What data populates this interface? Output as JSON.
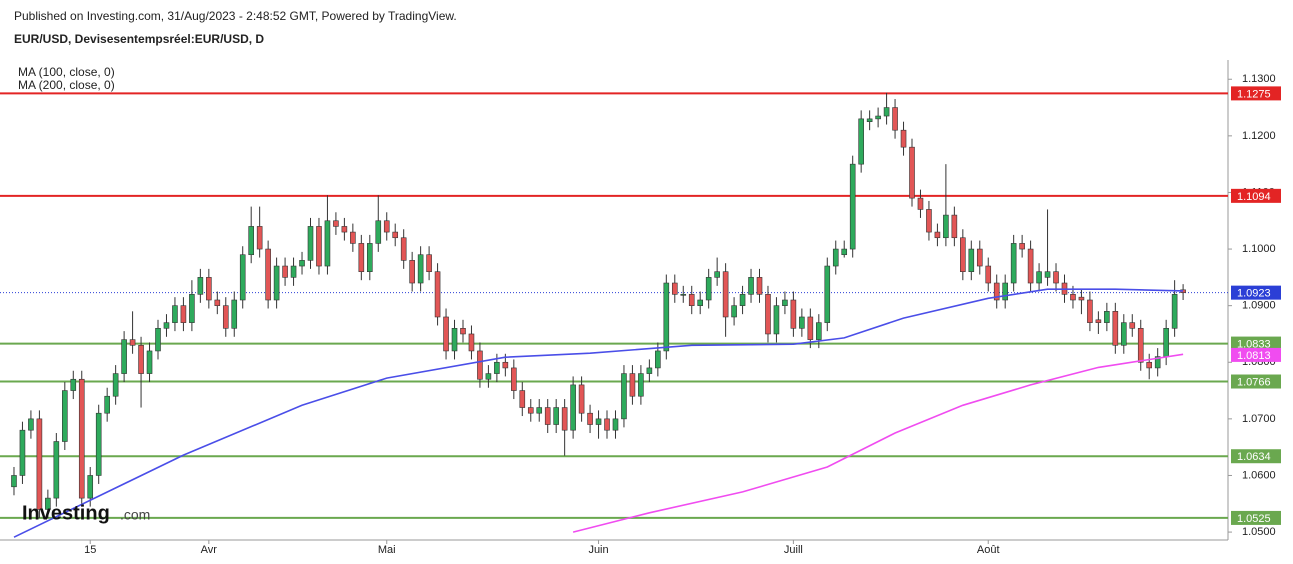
{
  "header": {
    "published": "Published on Investing.com, 31/Aug/2023 - 2:48:52 GMT, Powered by TradingView.",
    "symbol": "EUR/USD, Devisesentempsréel:EUR/USD, D"
  },
  "logo": {
    "name": "Investing",
    "suffix": ".com"
  },
  "chart_data": {
    "type": "candlestick",
    "up_color": "#2eaa5c",
    "down_color": "#e25656",
    "xlim": [
      -1.65,
      143.3
    ],
    "ylim": [
      1.0486,
      1.1334
    ],
    "xticks": [
      {
        "value": 9,
        "label": "15"
      },
      {
        "value": 23,
        "label": "Avr"
      },
      {
        "value": 44,
        "label": "Mai"
      },
      {
        "value": 69,
        "label": "Juin"
      },
      {
        "value": 92,
        "label": "Juill"
      },
      {
        "value": 115,
        "label": "Août"
      }
    ],
    "yticks": [
      {
        "value": 1.13,
        "label": "1.1300"
      },
      {
        "value": 1.12,
        "label": "1.1200"
      },
      {
        "value": 1.11,
        "label": "1.1100"
      },
      {
        "value": 1.1,
        "label": "1.1000"
      },
      {
        "value": 1.09,
        "label": "1.0900"
      },
      {
        "value": 1.08,
        "label": "1.0800"
      },
      {
        "value": 1.07,
        "label": "1.0700"
      },
      {
        "value": 1.06,
        "label": "1.0600"
      },
      {
        "value": 1.05,
        "label": "1.0500"
      }
    ],
    "open": [
      1.058,
      1.06,
      1.068,
      1.07,
      1.054,
      1.056,
      1.066,
      1.075,
      1.077,
      1.056,
      1.06,
      1.071,
      1.074,
      1.078,
      1.084,
      1.083,
      1.078,
      1.082,
      1.086,
      1.087,
      1.09,
      1.087,
      1.092,
      1.095,
      1.091,
      1.09,
      1.086,
      1.091,
      1.099,
      1.104,
      1.1,
      1.091,
      1.097,
      1.095,
      1.097,
      1.098,
      1.104,
      1.097,
      1.105,
      1.104,
      1.103,
      1.101,
      1.096,
      1.101,
      1.105,
      1.103,
      1.102,
      1.098,
      1.094,
      1.099,
      1.096,
      1.088,
      1.082,
      1.086,
      1.085,
      1.082,
      1.077,
      1.078,
      1.08,
      1.079,
      1.075,
      1.072,
      1.071,
      1.072,
      1.069,
      1.072,
      1.068,
      1.076,
      1.071,
      1.069,
      1.07,
      1.068,
      1.07,
      1.078,
      1.074,
      1.078,
      1.079,
      1.082,
      1.094,
      1.092,
      1.092,
      1.09,
      1.091,
      1.095,
      1.096,
      1.088,
      1.09,
      1.092,
      1.095,
      1.092,
      1.085,
      1.09,
      1.091,
      1.086,
      1.088,
      1.084,
      1.087,
      1.097,
      1.099,
      1.1,
      1.115,
      1.1225,
      1.123,
      1.1235,
      1.125,
      1.121,
      1.118,
      1.109,
      1.107,
      1.103,
      1.102,
      1.106,
      1.102,
      1.096,
      1.1,
      1.097,
      1.094,
      1.091,
      1.094,
      1.101,
      1.1,
      1.094,
      1.095,
      1.096,
      1.094,
      1.092,
      1.0915,
      1.091,
      1.0875,
      1.087,
      1.089,
      1.083,
      1.087,
      1.086,
      1.08,
      1.079,
      1.081,
      1.086,
      1.0928
    ],
    "high": [
      1.0615,
      1.0695,
      1.0715,
      1.0715,
      1.0575,
      1.0675,
      1.0765,
      1.0785,
      1.0785,
      1.0615,
      1.0725,
      1.0755,
      1.0795,
      1.0855,
      1.089,
      1.0845,
      1.0835,
      1.0875,
      1.0885,
      1.0915,
      1.0915,
      1.0945,
      1.0965,
      1.0965,
      1.0925,
      1.0915,
      1.0925,
      1.1005,
      1.1075,
      1.1075,
      1.1015,
      1.0985,
      1.0985,
      1.0985,
      1.0995,
      1.1055,
      1.1055,
      1.1095,
      1.1065,
      1.1055,
      1.1045,
      1.1025,
      1.1025,
      1.1095,
      1.1065,
      1.1045,
      1.1035,
      1.0995,
      1.1005,
      1.1005,
      1.0975,
      1.0895,
      1.0875,
      1.0875,
      1.0865,
      1.0835,
      1.0795,
      1.0815,
      1.0815,
      1.0805,
      1.0765,
      1.0735,
      1.0735,
      1.0735,
      1.0735,
      1.0735,
      1.0775,
      1.0775,
      1.0725,
      1.0715,
      1.0715,
      1.0715,
      1.0795,
      1.0795,
      1.0795,
      1.0805,
      1.0835,
      1.0955,
      1.0955,
      1.0935,
      1.0935,
      1.0925,
      1.0965,
      1.0985,
      1.0975,
      1.0915,
      1.0935,
      1.0965,
      1.0965,
      1.0935,
      1.0915,
      1.0925,
      1.0925,
      1.0895,
      1.0895,
      1.0885,
      1.0985,
      1.1015,
      1.1015,
      1.1165,
      1.1245,
      1.1245,
      1.125,
      1.1276,
      1.1265,
      1.1225,
      1.1195,
      1.1105,
      1.1085,
      1.1045,
      1.115,
      1.1075,
      1.1035,
      1.1015,
      1.1015,
      1.0985,
      1.0955,
      1.0955,
      1.1025,
      1.1025,
      1.1015,
      1.0975,
      1.107,
      1.0975,
      1.0955,
      1.0935,
      1.093,
      1.0925,
      1.089,
      1.0905,
      1.0905,
      1.0885,
      1.0885,
      1.0875,
      1.0815,
      1.0825,
      1.0875,
      1.0945,
      1.0938
    ],
    "low": [
      1.0565,
      1.0585,
      1.0665,
      1.0525,
      1.0525,
      1.0545,
      1.0645,
      1.0735,
      1.0545,
      1.0545,
      1.0585,
      1.0695,
      1.0725,
      1.0765,
      1.0815,
      1.072,
      1.0765,
      1.0805,
      1.0845,
      1.0855,
      1.0855,
      1.0855,
      1.0905,
      1.0895,
      1.0885,
      1.0845,
      1.0845,
      1.0895,
      1.0975,
      1.0985,
      1.0895,
      1.0895,
      1.0935,
      1.0935,
      1.0955,
      1.0965,
      1.0955,
      1.0955,
      1.1025,
      1.1015,
      1.0995,
      1.0945,
      1.0945,
      1.0995,
      1.1015,
      1.1005,
      1.0965,
      1.0925,
      1.0925,
      1.0945,
      1.0865,
      1.0805,
      1.0805,
      1.0835,
      1.0805,
      1.0755,
      1.0755,
      1.0765,
      1.0775,
      1.0735,
      1.0705,
      1.0695,
      1.0695,
      1.0675,
      1.0675,
      1.0635,
      1.0665,
      1.0695,
      1.0675,
      1.0665,
      1.0665,
      1.0665,
      1.0685,
      1.0725,
      1.0725,
      1.0765,
      1.0775,
      1.0805,
      1.0905,
      1.0905,
      1.0885,
      1.0885,
      1.0895,
      1.0935,
      1.0845,
      1.0865,
      1.0885,
      1.0905,
      1.0905,
      1.0835,
      1.0835,
      1.0885,
      1.0845,
      1.0845,
      1.0825,
      1.0825,
      1.0855,
      1.0955,
      1.0985,
      1.0985,
      1.1135,
      1.121,
      1.1215,
      1.122,
      1.1195,
      1.1165,
      1.1075,
      1.1055,
      1.1015,
      1.1005,
      1.1005,
      1.1005,
      1.0945,
      1.0945,
      1.0955,
      1.0925,
      1.0895,
      1.0895,
      1.0925,
      1.0985,
      1.0925,
      1.0925,
      1.0935,
      1.0925,
      1.0905,
      1.0895,
      1.0885,
      1.0855,
      1.085,
      1.0855,
      1.0815,
      1.0815,
      1.0845,
      1.0785,
      1.077,
      1.0775,
      1.0795,
      1.0845,
      1.091
    ],
    "close": [
      1.06,
      1.068,
      1.07,
      1.054,
      1.056,
      1.066,
      1.075,
      1.077,
      1.056,
      1.06,
      1.071,
      1.074,
      1.078,
      1.084,
      1.083,
      1.078,
      1.082,
      1.086,
      1.087,
      1.09,
      1.087,
      1.092,
      1.095,
      1.091,
      1.09,
      1.086,
      1.091,
      1.099,
      1.104,
      1.1,
      1.091,
      1.097,
      1.095,
      1.097,
      1.098,
      1.104,
      1.097,
      1.105,
      1.104,
      1.103,
      1.101,
      1.096,
      1.101,
      1.105,
      1.103,
      1.102,
      1.098,
      1.094,
      1.099,
      1.096,
      1.088,
      1.082,
      1.086,
      1.085,
      1.082,
      1.077,
      1.078,
      1.08,
      1.079,
      1.075,
      1.072,
      1.071,
      1.072,
      1.069,
      1.072,
      1.068,
      1.076,
      1.071,
      1.069,
      1.07,
      1.068,
      1.07,
      1.078,
      1.074,
      1.078,
      1.079,
      1.082,
      1.094,
      1.092,
      1.092,
      1.09,
      1.091,
      1.095,
      1.096,
      1.088,
      1.09,
      1.092,
      1.095,
      1.092,
      1.085,
      1.09,
      1.091,
      1.086,
      1.088,
      1.084,
      1.087,
      1.097,
      1.1,
      1.1,
      1.115,
      1.123,
      1.123,
      1.1235,
      1.125,
      1.121,
      1.118,
      1.109,
      1.107,
      1.103,
      1.102,
      1.106,
      1.102,
      1.096,
      1.1,
      1.097,
      1.094,
      1.091,
      1.094,
      1.101,
      1.1,
      1.094,
      1.096,
      1.096,
      1.094,
      1.092,
      1.091,
      1.091,
      1.087,
      1.087,
      1.089,
      1.083,
      1.087,
      1.086,
      1.08,
      1.079,
      1.081,
      1.086,
      1.092,
      1.0923
    ],
    "series": [
      {
        "name": "MA (100, close, 0)",
        "color": "#4a4ee8",
        "x": [
          0,
          20,
          34,
          44,
          58,
          68,
          80,
          92,
          98,
          105,
          115,
          122,
          130,
          138
        ],
        "values": [
          1.0491,
          1.0636,
          1.0724,
          1.0772,
          1.0809,
          1.0816,
          1.083,
          1.0832,
          1.0843,
          1.0878,
          1.0913,
          1.0929,
          1.0929,
          1.0926
        ]
      },
      {
        "name": "MA (200, close, 0)",
        "color": "#f04cf0",
        "x": [
          66,
          75,
          86,
          96,
          104,
          112,
          120,
          128,
          138
        ],
        "values": [
          1.05,
          1.0534,
          1.0571,
          1.0615,
          1.0675,
          1.0724,
          1.076,
          1.0791,
          1.0814
        ],
        "last_label": 1.0813
      }
    ],
    "last_price": {
      "value": 1.0923,
      "color": "#2b3fd6"
    },
    "levels": [
      {
        "value": 1.1275,
        "color": "#e32424"
      },
      {
        "value": 1.1094,
        "color": "#e32424"
      },
      {
        "value": 1.0833,
        "color": "#6aa84f"
      },
      {
        "value": 1.0766,
        "color": "#6aa84f"
      },
      {
        "value": 1.0634,
        "color": "#6aa84f"
      },
      {
        "value": 1.0525,
        "color": "#6aa84f"
      }
    ]
  }
}
